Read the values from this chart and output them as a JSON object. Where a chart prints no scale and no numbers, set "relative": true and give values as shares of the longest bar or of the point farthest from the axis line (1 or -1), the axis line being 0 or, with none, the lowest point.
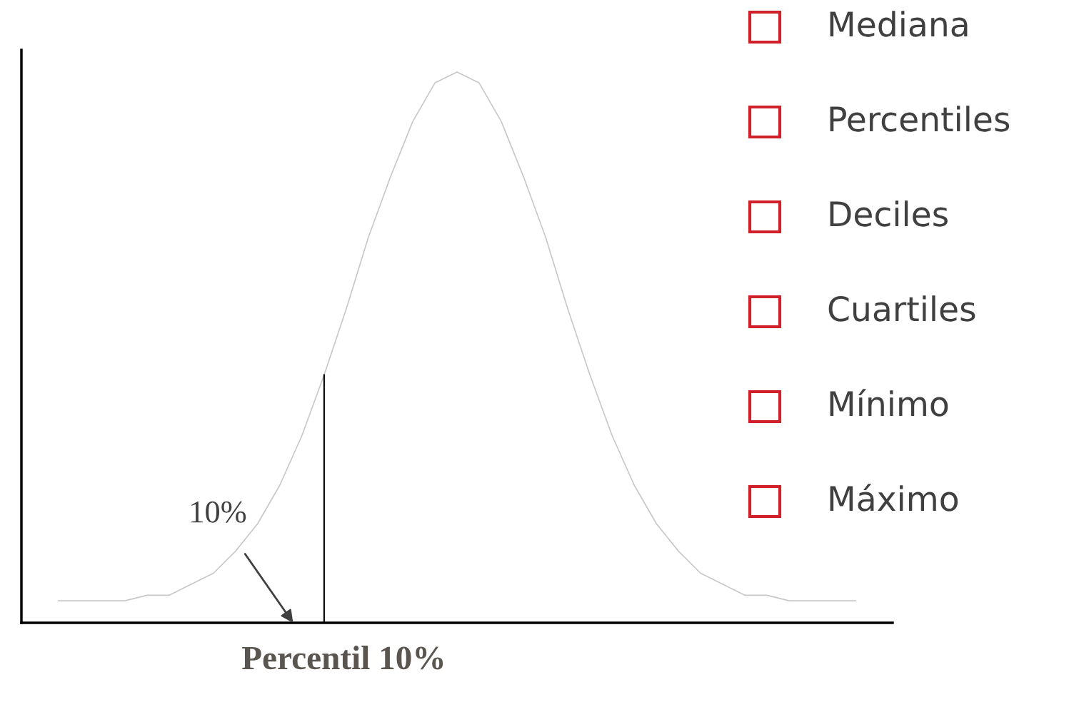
{
  "chart_data": {
    "type": "line",
    "relative": true,
    "color": "#c8c8c8",
    "xlabel": "Percentil 10%",
    "categories": [
      null,
      null,
      null,
      null,
      null,
      null,
      null,
      null,
      null,
      null,
      null,
      null,
      null,
      null,
      null,
      null,
      null,
      null,
      null,
      null,
      null,
      null,
      null,
      null,
      null,
      null,
      null,
      null,
      null,
      null,
      null,
      null,
      null,
      null,
      null,
      null,
      null
    ],
    "values": [
      0.04,
      0.04,
      0.04,
      0.04,
      0.05,
      0.05,
      0.07,
      0.09,
      0.13,
      0.18,
      0.25,
      0.34,
      0.45,
      0.57,
      0.7,
      0.81,
      0.91,
      0.98,
      1.0,
      0.98,
      0.91,
      0.81,
      0.7,
      0.57,
      0.45,
      0.34,
      0.25,
      0.18,
      0.13,
      0.09,
      0.07,
      0.05,
      0.05,
      0.04,
      0.04,
      0.04,
      0.04
    ],
    "annotations": [
      "10%",
      "Mediana",
      "Percentiles",
      "Deciles",
      "Cuartiles",
      "Mínimo",
      "Máximo"
    ],
    "grid": false
  }
}
